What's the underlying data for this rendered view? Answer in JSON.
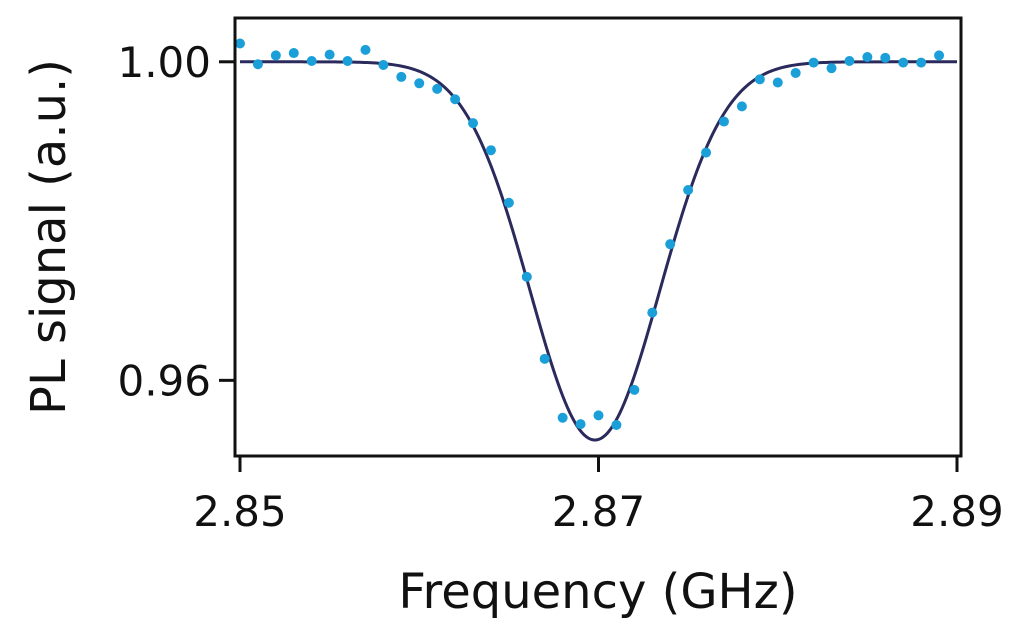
{
  "chart_data": {
    "type": "scatter",
    "title": "",
    "xlabel": "Frequency (GHz)",
    "ylabel": "PL signal (a.u.)",
    "xlim": [
      2.85,
      2.89
    ],
    "ylim": [
      0.9505,
      1.0055
    ],
    "x_ticks": [
      {
        "value": 2.85,
        "label": "2.85"
      },
      {
        "value": 2.87,
        "label": "2.87"
      },
      {
        "value": 2.89,
        "label": "2.89"
      }
    ],
    "y_ticks": [
      {
        "value": 0.96,
        "label": "0.96"
      },
      {
        "value": 1.0,
        "label": "1.00"
      }
    ],
    "grid": false,
    "legend": "none",
    "series": [
      {
        "kind": "points",
        "color": "#1a9fd8",
        "x": [
          2.85,
          2.851,
          2.852,
          2.853,
          2.854,
          2.855,
          2.856,
          2.857,
          2.858,
          2.859,
          2.86,
          2.861,
          2.862,
          2.863,
          2.864,
          2.865,
          2.866,
          2.867,
          2.868,
          2.869,
          2.87,
          2.871,
          2.872,
          2.873,
          2.874,
          2.875,
          2.876,
          2.877,
          2.878,
          2.879,
          2.88,
          2.881,
          2.882,
          2.883,
          2.884,
          2.885,
          2.886,
          2.887,
          2.888,
          2.889
        ],
        "y": [
          1.0023,
          0.9997,
          1.0008,
          1.0011,
          1.0001,
          1.0009,
          1.0001,
          1.0015,
          0.9996,
          0.9981,
          0.9973,
          0.9966,
          0.9953,
          0.9923,
          0.9889,
          0.9823,
          0.973,
          0.9627,
          0.9553,
          0.9545,
          0.9556,
          0.9544,
          0.9588,
          0.9685,
          0.9771,
          0.9839,
          0.9886,
          0.9925,
          0.9944,
          0.9978,
          0.9974,
          0.9986,
          0.9999,
          0.9992,
          1.0001,
          1.0006,
          1.0005,
          0.9999,
          0.9999,
          1.0008
        ]
      },
      {
        "kind": "fit",
        "color": "#2b2a5c",
        "model": "gaussian",
        "baseline": 1.0,
        "depth": 0.0475,
        "center": 2.8698,
        "fwhm": 0.0085
      }
    ]
  }
}
